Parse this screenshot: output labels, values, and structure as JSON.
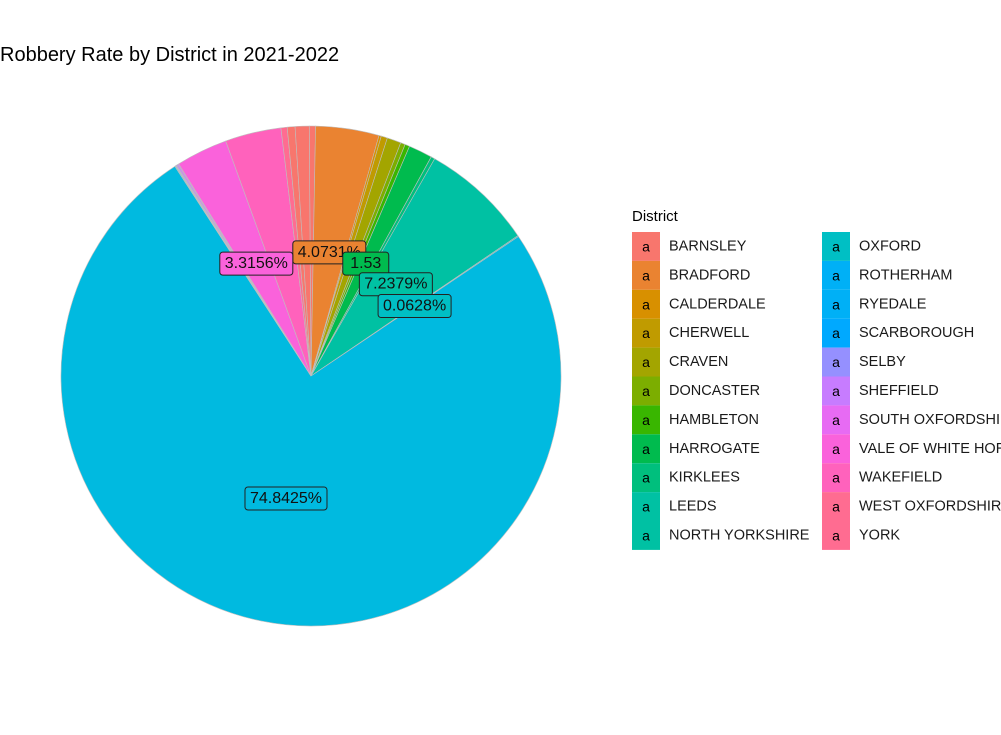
{
  "chart_data": {
    "type": "pie",
    "title": "Robbery Rate by District in 2021-2022",
    "legend_title": "District",
    "legend_key_glyph": "a",
    "legend_position": "right",
    "slices": [
      {
        "name": "BARNSLEY",
        "value": 0.4,
        "color": "#F8766D",
        "label": ""
      },
      {
        "name": "BRADFORD",
        "value": 4.0731,
        "color": "#EA8331",
        "label": "4.0731%"
      },
      {
        "name": "CALDERDALE",
        "value": 0.15,
        "color": "#D89000",
        "label": ""
      },
      {
        "name": "CHERWELL",
        "value": 0.4,
        "color": "#C09B00",
        "label": ""
      },
      {
        "name": "CRAVEN",
        "value": 0.9,
        "color": "#A3A500",
        "label": ""
      },
      {
        "name": "DONCASTER",
        "value": 0.3,
        "color": "#7CAE00",
        "label": ""
      },
      {
        "name": "HAMBLETON",
        "value": 0.3,
        "color": "#39B600",
        "label": ""
      },
      {
        "name": "HARROGATE",
        "value": 1.53,
        "color": "#00BB4E",
        "label": "1.53"
      },
      {
        "name": "KIRKLEES",
        "value": 0.25,
        "color": "#00BF7D",
        "label": ""
      },
      {
        "name": "LEEDS",
        "value": 7.2379,
        "color": "#00C1A3",
        "label": "7.2379%"
      },
      {
        "name": "NORTH YORKSHIRE",
        "value": 0.0628,
        "color": "#00BFC4",
        "label": "0.0628%"
      },
      {
        "name": "OXFORD",
        "value": 74.8425,
        "color": "#00BAE0",
        "label": "74.8425%"
      },
      {
        "name": "ROTHERHAM",
        "value": 0.05,
        "color": "#00B0F6",
        "label": ""
      },
      {
        "name": "RYEDALE",
        "value": 0.03,
        "color": "#35A2FF",
        "label": ""
      },
      {
        "name": "SCARBOROUGH",
        "value": 0.05,
        "color": "#9590FF",
        "label": ""
      },
      {
        "name": "SELBY",
        "value": 0.1,
        "color": "#C77CFF",
        "label": ""
      },
      {
        "name": "SHEFFIELD",
        "value": 0.06,
        "color": "#E76BF3",
        "label": ""
      },
      {
        "name": "SOUTH OXFORDSHIRE",
        "value": 3.3156,
        "color": "#FA62DB",
        "label": "3.3156%"
      },
      {
        "name": "VALE OF WHITE HORSE",
        "value": 3.6,
        "color": "#FF62BC",
        "label": ""
      },
      {
        "name": "WAKEFIELD",
        "value": 0.4,
        "color": "#FF6C91",
        "label": ""
      },
      {
        "name": "WEST OXFORDSHIRE",
        "value": 0.5,
        "color": "#F8766D",
        "label": ""
      },
      {
        "name": "YORK",
        "value": 0.9,
        "color": "#F8766D",
        "label": ""
      }
    ],
    "legend_entries": [
      {
        "name": "BARNSLEY",
        "color": "#F8766D"
      },
      {
        "name": "BRADFORD",
        "color": "#EA8331"
      },
      {
        "name": "CALDERDALE",
        "color": "#D89000"
      },
      {
        "name": "CHERWELL",
        "color": "#C09B00"
      },
      {
        "name": "CRAVEN",
        "color": "#A3A500"
      },
      {
        "name": "DONCASTER",
        "color": "#7CAE00"
      },
      {
        "name": "HAMBLETON",
        "color": "#39B600"
      },
      {
        "name": "HARROGATE",
        "color": "#00BB4E"
      },
      {
        "name": "KIRKLEES",
        "color": "#00BF7D"
      },
      {
        "name": "LEEDS",
        "color": "#00C1A3"
      },
      {
        "name": "NORTH YORKSHIRE",
        "color": "#00C1A3"
      },
      {
        "name": "OXFORD",
        "color": "#00BFC4"
      },
      {
        "name": "ROTHERHAM",
        "color": "#00B0F6"
      },
      {
        "name": "RYEDALE",
        "color": "#00B0F6"
      },
      {
        "name": "SCARBOROUGH",
        "color": "#00A9FF"
      },
      {
        "name": "SELBY",
        "color": "#9590FF"
      },
      {
        "name": "SHEFFIELD",
        "color": "#C77CFF"
      },
      {
        "name": "SOUTH OXFORDSHIRE",
        "color": "#E76BF3"
      },
      {
        "name": "VALE OF WHITE HORSE",
        "color": "#FA62DB"
      },
      {
        "name": "WAKEFIELD",
        "color": "#FF62BC"
      },
      {
        "name": "WEST OXFORDSHIRE",
        "color": "#FF6C91"
      },
      {
        "name": "YORK",
        "color": "#FF6C91"
      }
    ]
  }
}
